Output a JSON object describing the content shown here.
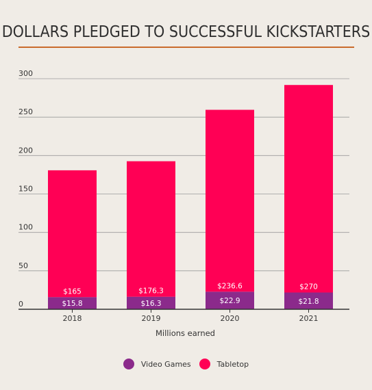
{
  "chart_data": {
    "type": "bar",
    "stacked": true,
    "title": "DOLLARS PLEDGED TO SUCCESSFUL KICKSTARTERS",
    "xlabel": "Millions earned",
    "ylabel": "",
    "categories": [
      "2018",
      "2019",
      "2020",
      "2021"
    ],
    "ylim": [
      0,
      300
    ],
    "yticks": [
      0,
      50,
      100,
      150,
      200,
      250,
      300
    ],
    "grid": true,
    "legend_position": "bottom",
    "series": [
      {
        "name": "Video Games",
        "color": "#8b2a8b",
        "values": [
          15.8,
          16.3,
          22.9,
          21.8
        ],
        "labels": [
          "$15.8",
          "$16.3",
          "$22.9",
          "$21.8"
        ]
      },
      {
        "name": "Tabletop",
        "color": "#ff0055",
        "values": [
          165,
          176.3,
          236.6,
          270
        ],
        "labels": [
          "$165",
          "$176.3",
          "$236.6",
          "$270"
        ]
      }
    ]
  }
}
